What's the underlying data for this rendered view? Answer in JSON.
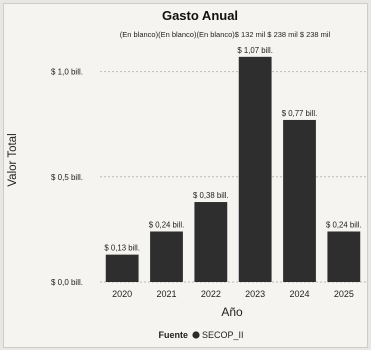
{
  "chart_data": {
    "type": "bar",
    "title": "Gasto Anual",
    "top_annotation": "(En blanco)(En blanco)(En blanco)$ 132 mil $ 238 mil $ 238 mil",
    "categories": [
      "2020",
      "2021",
      "2022",
      "2023",
      "2024",
      "2025"
    ],
    "values": [
      0.13,
      0.24,
      0.38,
      1.07,
      0.77,
      0.24
    ],
    "value_labels": [
      "$ 0,13 bill.",
      "$ 0,24 bill.",
      "$ 0,38 bill.",
      "$ 1,07 bill.",
      "$ 0,77 bill.",
      "$ 0,24 bill."
    ],
    "ylim": [
      0,
      1.15
    ],
    "yticks": [
      0,
      0.5,
      1.0
    ],
    "ytick_labels": [
      "$ 0,0 bill.",
      "$ 0,5 bill.",
      "$ 1,0 bill."
    ],
    "xlabel": "Año",
    "ylabel": "Valor Total",
    "grid": true,
    "legend": {
      "title": "Fuente",
      "placement": "bottom-center",
      "items": [
        {
          "name": "SECOP_II",
          "color": "#2b2b2b"
        }
      ]
    },
    "bar_color": "#2e2e2e",
    "text_color": "#1e1e1e"
  }
}
